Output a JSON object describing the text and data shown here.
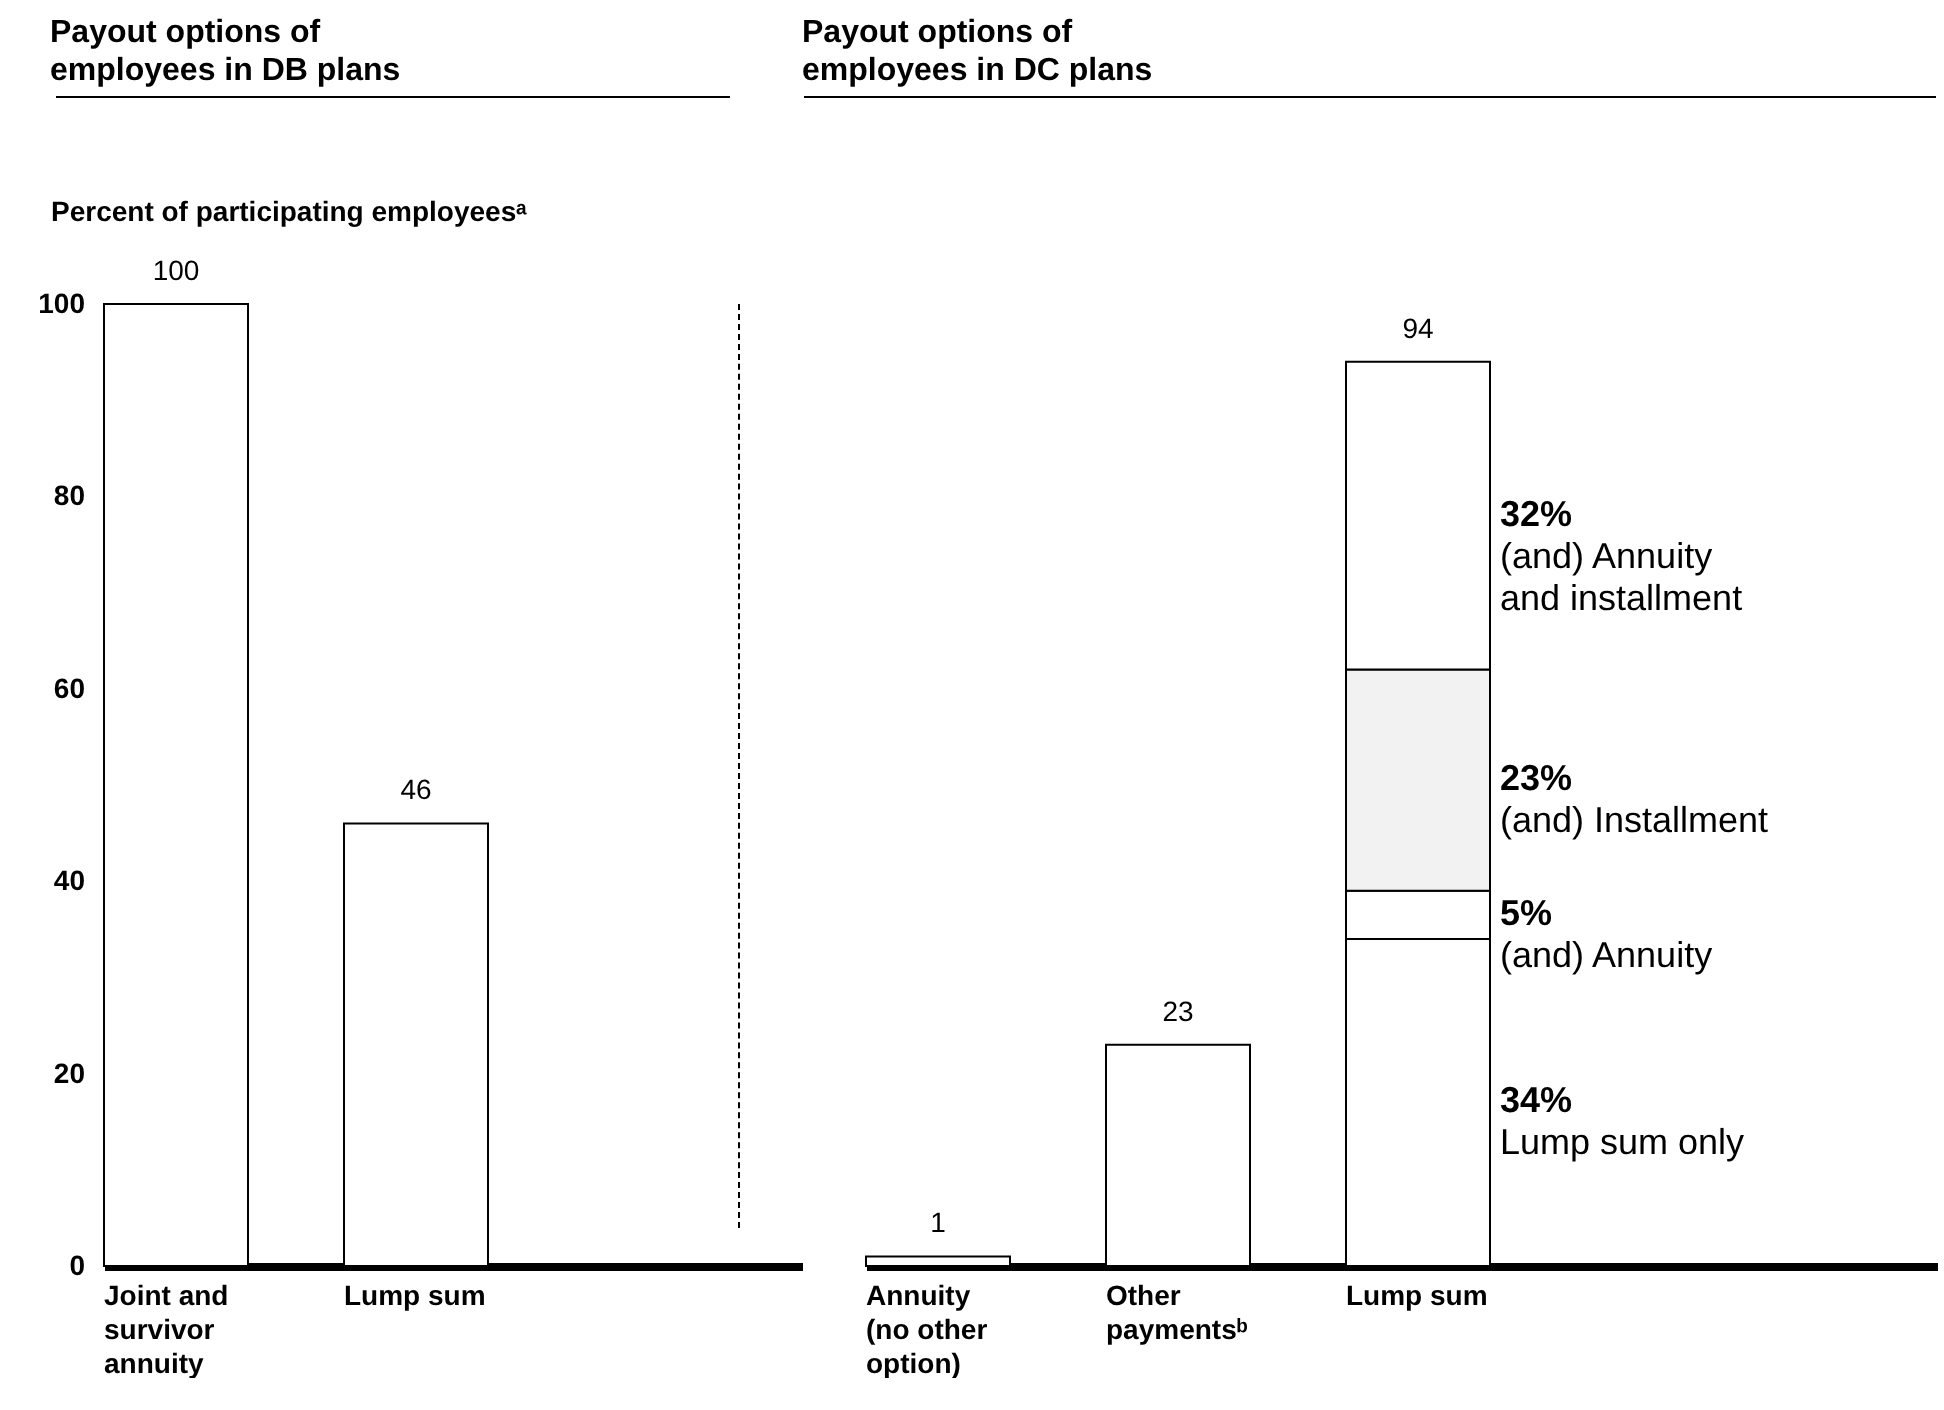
{
  "chart_data": [
    {
      "type": "bar",
      "title": "Payout options of employees in DB plans",
      "ylabel": "Percent of participating employeesᵃ",
      "categories": [
        "Joint and survivor annuity",
        "Lump sum"
      ],
      "values": [
        100,
        46
      ],
      "color": "#ffffff",
      "ylim": [
        0,
        100
      ],
      "yticks": [
        0,
        20,
        40,
        60,
        80,
        100
      ],
      "data_labels": true
    },
    {
      "type": "bar",
      "title": "Payout options of employees in DC plans",
      "categories": [
        "Annuity (no other option)",
        "Other paymentsᵇ",
        "Lump sum"
      ],
      "stacked": true,
      "series": [
        {
          "color": "#ffffff",
          "values": [
            1,
            23,
            null
          ]
        },
        {
          "name": "Lump sum only",
          "color": "#ffffff",
          "values": [
            null,
            null,
            34
          ]
        },
        {
          "name": "(and) Annuity",
          "color": "#ffffff",
          "values": [
            null,
            null,
            5
          ]
        },
        {
          "name": "(and) Installment",
          "color": "#f2f2f2",
          "values": [
            null,
            null,
            23
          ]
        },
        {
          "name": "(and) Annuity and installment",
          "color": "#ffffff",
          "values": [
            null,
            null,
            32
          ]
        }
      ],
      "annotations": [
        "34%",
        "5%",
        "23%",
        "32%"
      ],
      "totals": [
        "1",
        "23",
        "94"
      ],
      "ylim": [
        0,
        100
      ],
      "yticks": [
        0,
        20,
        40,
        60,
        80,
        100
      ],
      "tick_labels": "x"
    }
  ]
}
